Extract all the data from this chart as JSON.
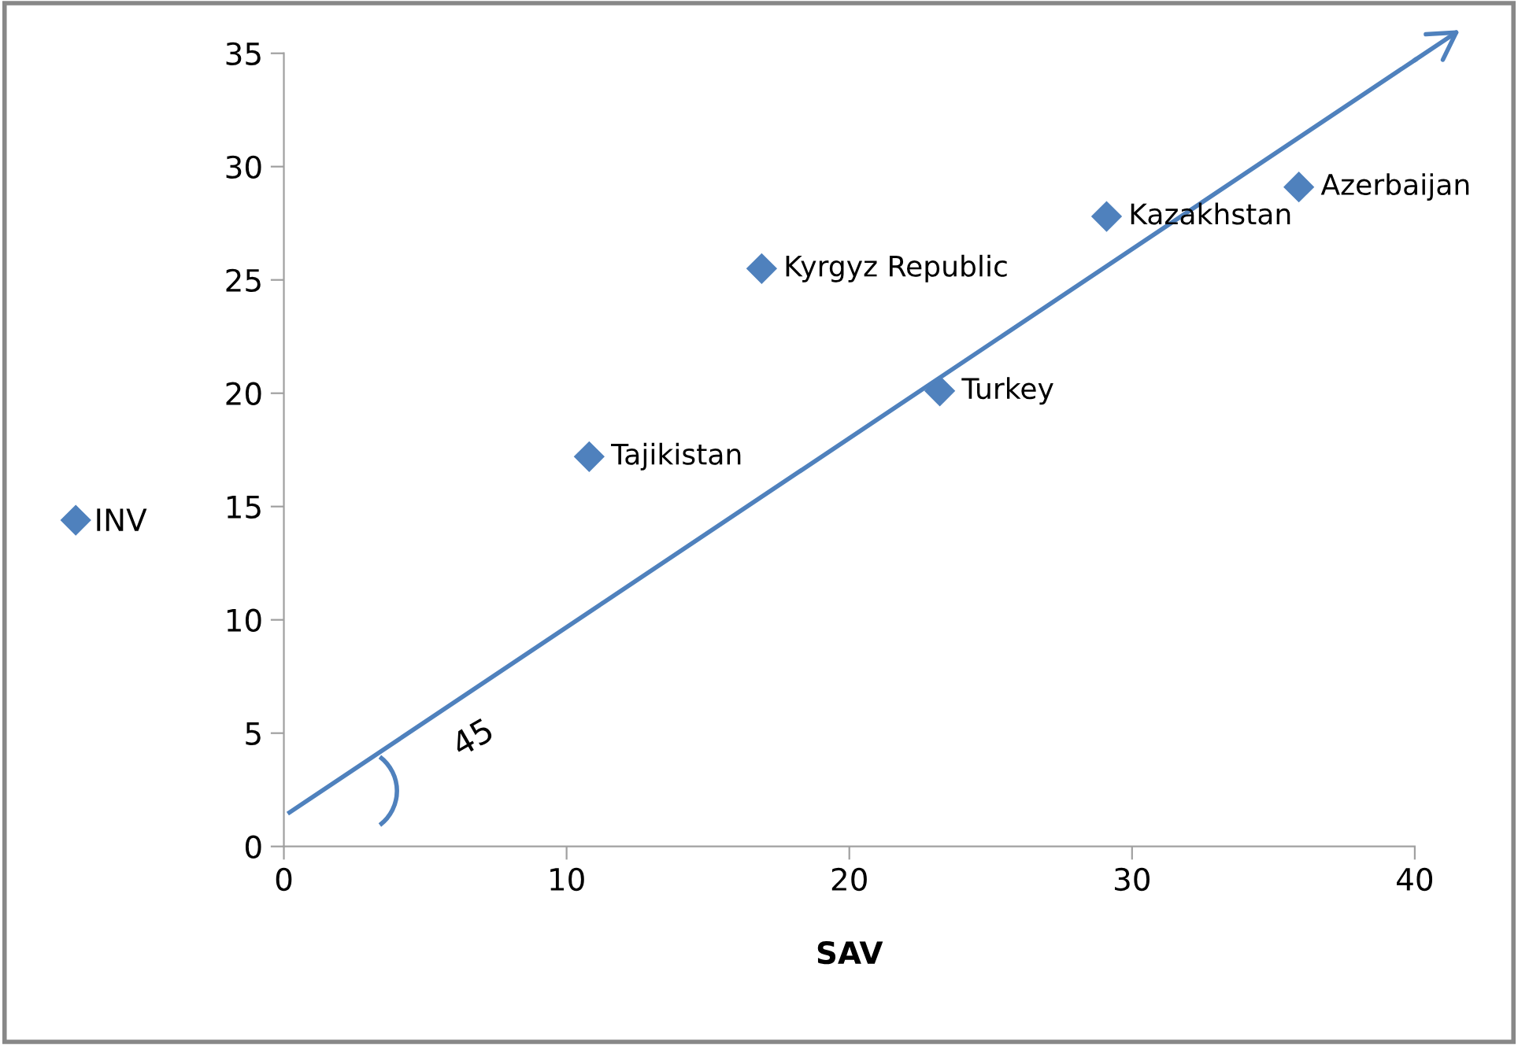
{
  "chart_data": {
    "type": "scatter",
    "xlabel": "SAV",
    "x": [
      10.8,
      16.9,
      23.2,
      29.1,
      35.9
    ],
    "series": [
      {
        "name": "INV",
        "color": "#4f81bd",
        "marker": "diamond",
        "values": [
          17.2,
          25.5,
          20.1,
          27.8,
          29.1
        ]
      },
      {
        "type": "line",
        "color": "#4f81bd",
        "marker": "none",
        "x": [
          0.2,
          40
        ],
        "values": [
          1.5,
          34.7
        ]
      }
    ],
    "xlim": [
      0,
      40
    ],
    "xticks": [
      0,
      10,
      20,
      30,
      40
    ],
    "ylim": [
      0,
      35
    ],
    "yticks": [
      0,
      5,
      10,
      15,
      20,
      25,
      30,
      35
    ],
    "grid": false,
    "legend": "left",
    "annotations": [
      {
        "text": "Tajikistan",
        "x": 10.8,
        "y": 17.2
      },
      {
        "text": "Kyrgyz Republic",
        "x": 16.9,
        "y": 25.5
      },
      {
        "text": "Turkey",
        "x": 23.2,
        "y": 20.1
      },
      {
        "text": "Kazakhstan",
        "x": 29.1,
        "y": 27.8
      },
      {
        "text": "Azerbaijan",
        "x": 35.9,
        "y": 29.1
      },
      "45"
    ]
  }
}
